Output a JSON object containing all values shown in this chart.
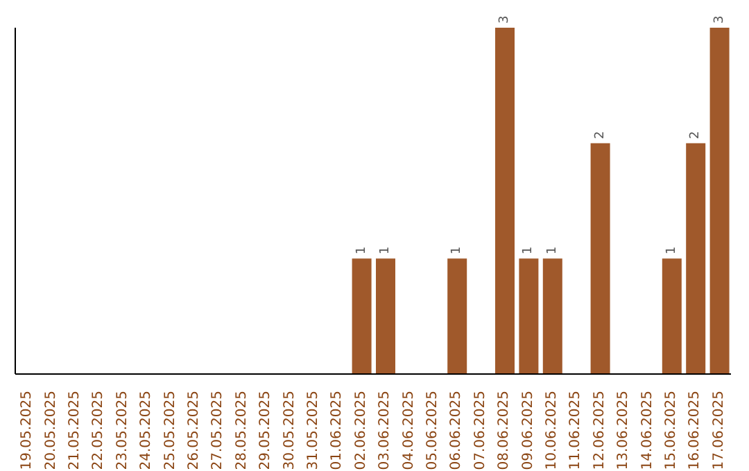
{
  "chart_data": {
    "type": "bar",
    "categories": [
      "19.05.2025",
      "20.05.2025",
      "21.05.2025",
      "22.05.2025",
      "23.05.2025",
      "24.05.2025",
      "25.05.2025",
      "26.05.2025",
      "27.05.2025",
      "28.05.2025",
      "29.05.2025",
      "30.05.2025",
      "31.05.2025",
      "01.06.2025",
      "02.06.2025",
      "03.06.2025",
      "04.06.2025",
      "05.06.2025",
      "06.06.2025",
      "07.06.2025",
      "08.06.2025",
      "09.06.2025",
      "10.06.2025",
      "11.06.2025",
      "12.06.2025",
      "13.06.2025",
      "14.06.2025",
      "15.06.2025",
      "16.06.2025",
      "17.06.2025"
    ],
    "values": [
      null,
      null,
      null,
      null,
      null,
      null,
      null,
      null,
      null,
      null,
      null,
      null,
      null,
      null,
      1,
      1,
      null,
      null,
      1,
      null,
      3,
      1,
      1,
      null,
      2,
      null,
      null,
      1,
      2,
      3
    ],
    "color": "#a0592b",
    "data_labels": true,
    "grid": false,
    "tick_labels": "x"
  }
}
